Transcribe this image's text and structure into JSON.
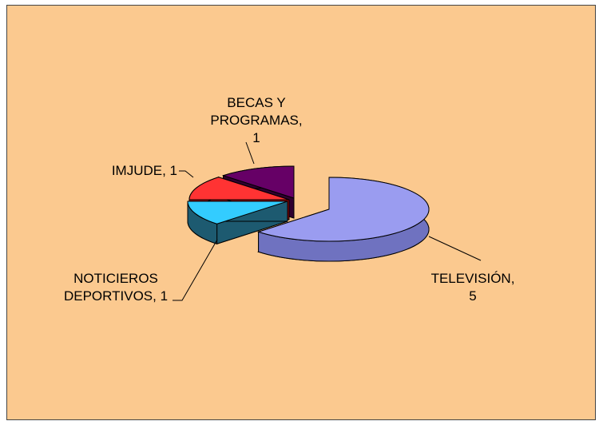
{
  "chart_data": {
    "type": "pie3d",
    "values": [
      5,
      1,
      1,
      1
    ],
    "value_labels": [
      "TELEVISIÓN, 5",
      "NOTICIEROS DEPORTIVOS, 1",
      "IMJUDE, 1",
      "BECAS Y PROGRAMAS, 1"
    ],
    "colors": [
      "#9a9cf0",
      "#33ccff",
      "#ff3333",
      "#660066"
    ],
    "side_colors": [
      "#6f72c0",
      "#1d5a70",
      "#a00000",
      "#300030"
    ]
  }
}
